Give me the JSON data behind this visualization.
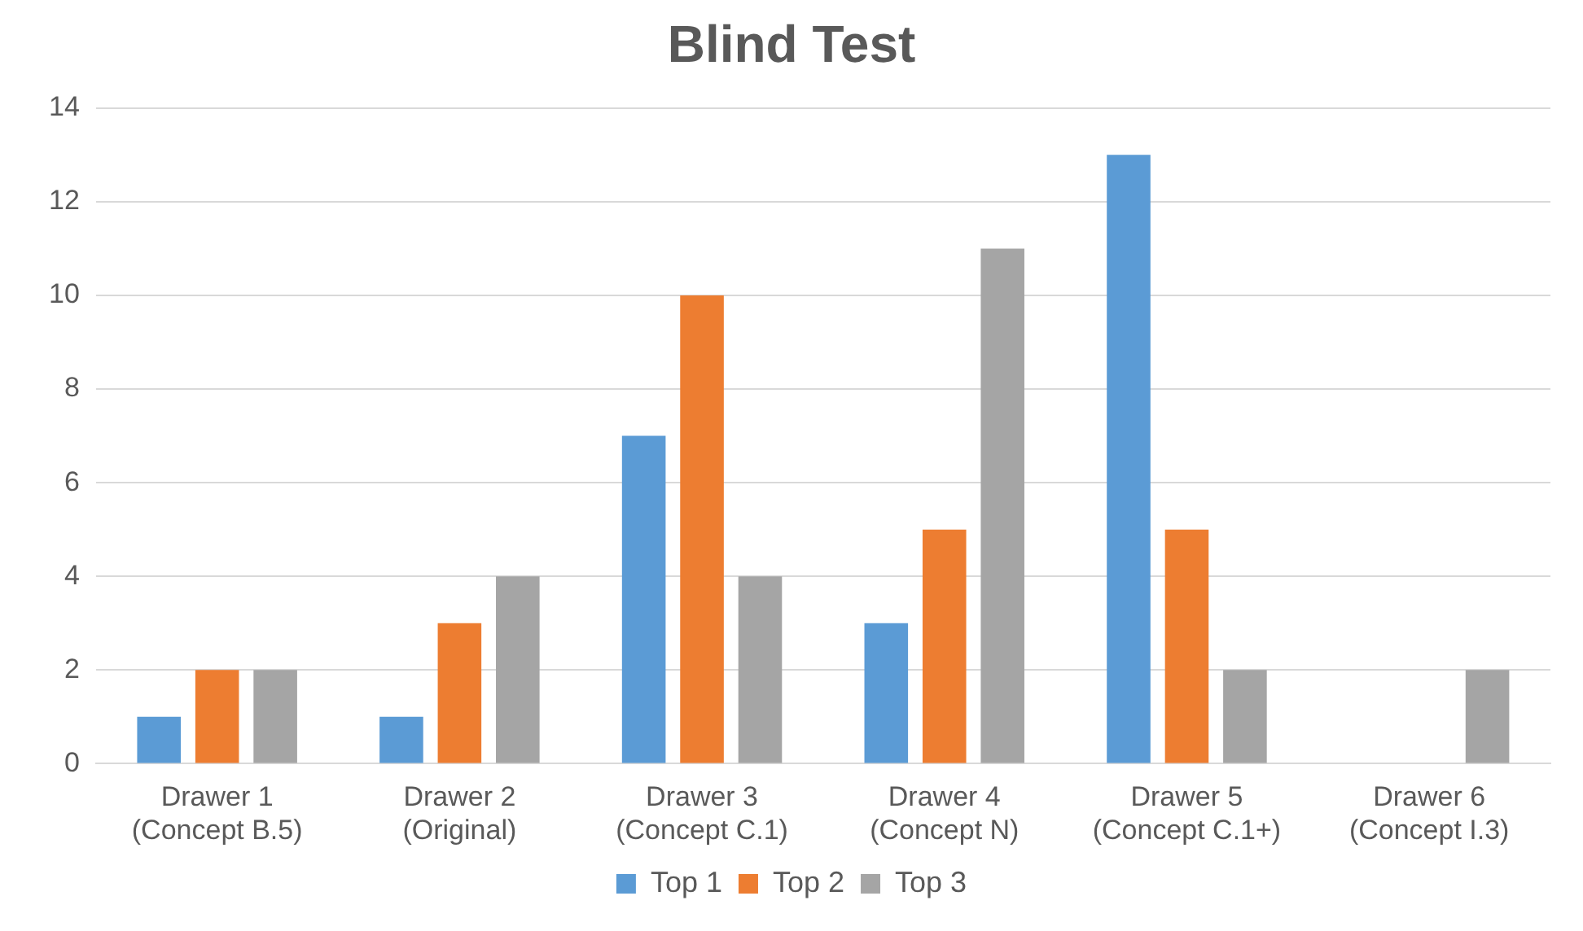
{
  "chart_data": {
    "type": "bar",
    "title": "Blind Test",
    "categories": [
      "Drawer 1\n(Concept B.5)",
      "Drawer 2\n(Original)",
      "Drawer 3\n(Concept C.1)",
      "Drawer 4\n(Concept N)",
      "Drawer 5\n(Concept C.1+)",
      "Drawer 6\n(Concept I.3)"
    ],
    "series": [
      {
        "name": "Top 1",
        "color": "#5b9bd5",
        "values": [
          1,
          1,
          7,
          3,
          13,
          0
        ]
      },
      {
        "name": "Top 2",
        "color": "#ed7d31",
        "values": [
          2,
          3,
          10,
          5,
          5,
          0
        ]
      },
      {
        "name": "Top 3",
        "color": "#a5a5a5",
        "values": [
          2,
          4,
          4,
          11,
          2,
          2
        ]
      }
    ],
    "ylim": [
      0,
      14
    ],
    "yticks": [
      0,
      2,
      4,
      6,
      8,
      10,
      12,
      14
    ],
    "grid": "y",
    "legend": "bottom"
  }
}
